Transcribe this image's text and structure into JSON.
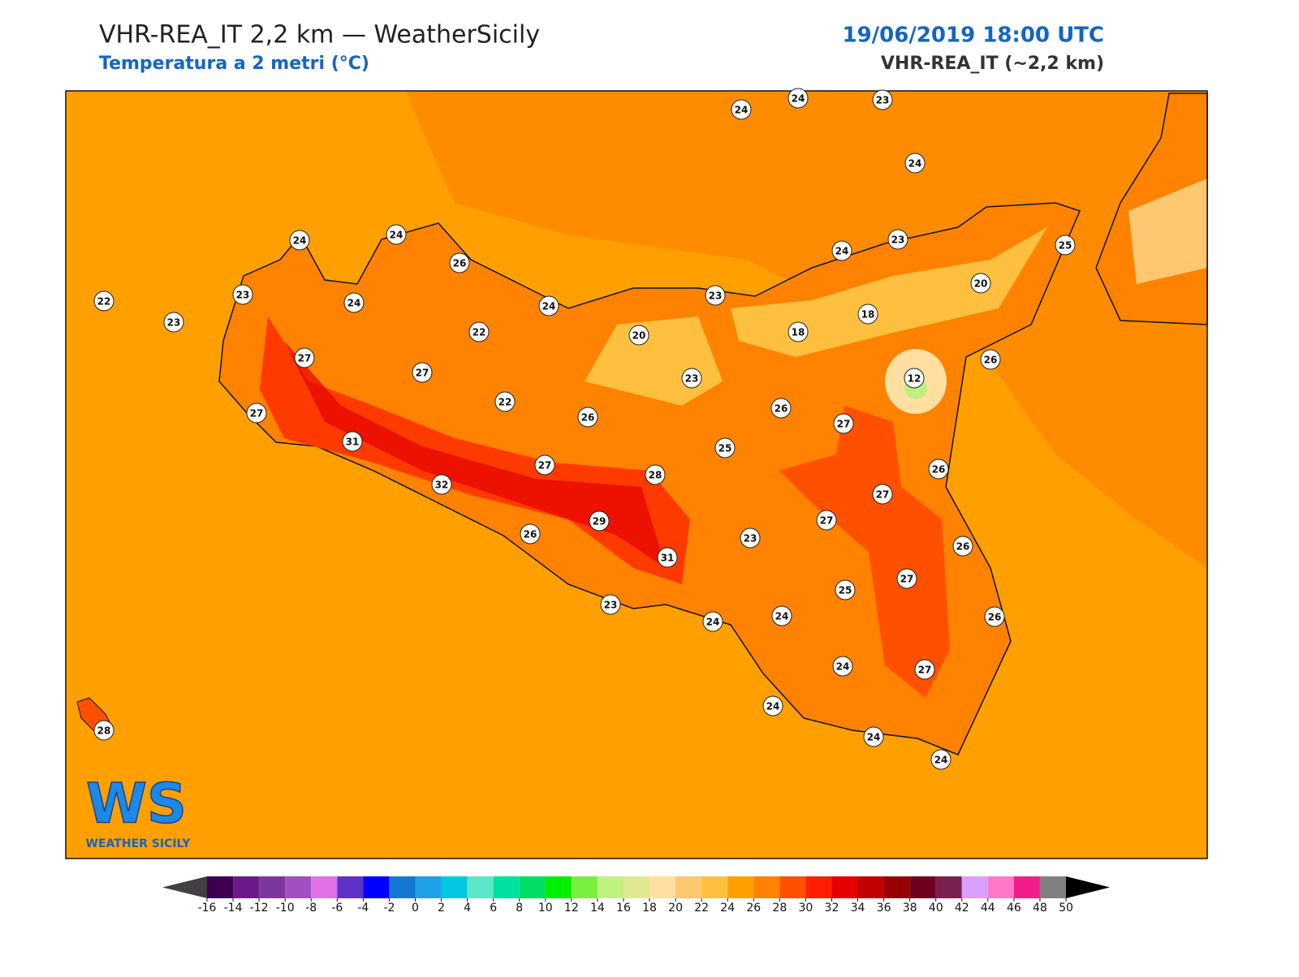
{
  "header": {
    "title": "VHR-REA_IT 2,2 km — WeatherSicily",
    "subtitle": "Temperatura a 2 metri (°C)",
    "date": "19/06/2019 18:00 UTC",
    "model": "VHR-REA_IT (~2,2 km)"
  },
  "stations": [
    24,
    24,
    23,
    24,
    24,
    24,
    26,
    22,
    23,
    23,
    24,
    24,
    22,
    23,
    24,
    23,
    25,
    20,
    18,
    18,
    20,
    27,
    27,
    23,
    12,
    26,
    27,
    22,
    26,
    26,
    27,
    31,
    25,
    26,
    32,
    27,
    28,
    27,
    29,
    27,
    26,
    23,
    26,
    31,
    27,
    25,
    23,
    24,
    24,
    26,
    24,
    27,
    24,
    24,
    24,
    28
  ],
  "colorbar": {
    "ticks": [
      -16,
      -14,
      -12,
      -10,
      -8,
      -6,
      -4,
      -2,
      0,
      2,
      4,
      6,
      8,
      10,
      12,
      14,
      16,
      18,
      20,
      22,
      24,
      26,
      28,
      30,
      32,
      34,
      36,
      38,
      40,
      42,
      44,
      46,
      48,
      50
    ],
    "colors": [
      "#3d0050",
      "#6a1a8a",
      "#7f35a0",
      "#a050c0",
      "#e070e8",
      "#6030c8",
      "#0000ff",
      "#1478d2",
      "#1ea0e6",
      "#00c8e0",
      "#5ae8c8",
      "#00e0a0",
      "#00dc64",
      "#00f000",
      "#78f040",
      "#c0f080",
      "#e0e890",
      "#ffe0a0",
      "#ffc870",
      "#ffc040",
      "#ffa000",
      "#ff8200",
      "#ff5000",
      "#ff1e00",
      "#e60000",
      "#c00000",
      "#960000",
      "#6e0020",
      "#7a2050",
      "#d8a0ff",
      "#ff78c8",
      "#f01e8c",
      "#808080",
      "#3a3a3a"
    ],
    "under_color": "#404040",
    "over_color": "#000000"
  },
  "logo": {
    "mark": "WS",
    "name": "WEATHER SICILY"
  }
}
